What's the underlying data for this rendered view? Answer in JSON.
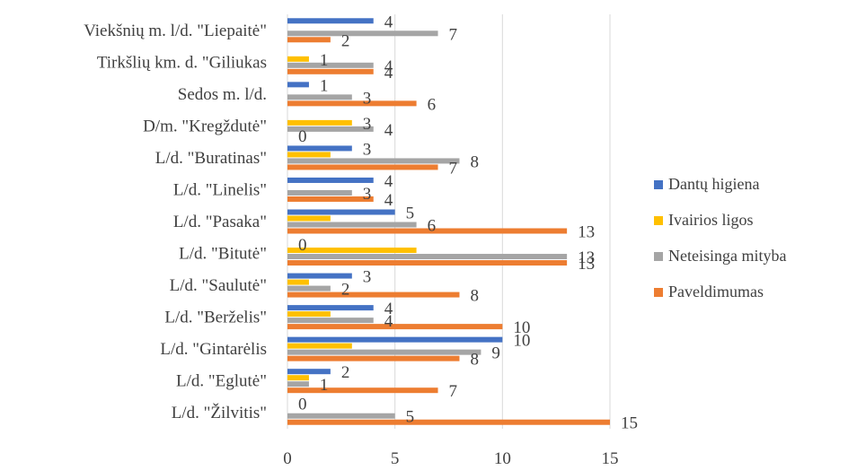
{
  "chart_data": {
    "type": "bar",
    "orientation": "horizontal",
    "categories": [
      "Viekšnių m. l/d. \"Liepaitė\"",
      "Tirkšlių km. d. \"Giliukas",
      "Sedos m. l/d.",
      "D/m. \"Kregždutė\"",
      "L/d. \"Buratinas\"",
      "L/d. \"Linelis\"",
      "L/d. \"Pasaka\"",
      "L/d. \"Bitutė\"",
      "L/d. \"Saulutė\"",
      "L/d. \"Berželis\"",
      "L/d. \"Gintarėlis",
      "L/d. \"Eglutė\"",
      "L/d. \"Žilvitis\""
    ],
    "series": [
      {
        "name": "Dantų higiena",
        "color": "#4472C4",
        "values": [
          4,
          0,
          1,
          0,
          3,
          4,
          5,
          0,
          3,
          4,
          10,
          2,
          0
        ]
      },
      {
        "name": "Ivairios ligos",
        "color": "#FFC000",
        "values": [
          0,
          1,
          0,
          3,
          2,
          0,
          2,
          6,
          1,
          2,
          3,
          1,
          0
        ]
      },
      {
        "name": "Neteisinga mityba",
        "color": "#A5A5A5",
        "values": [
          7,
          4,
          3,
          4,
          8,
          3,
          6,
          13,
          2,
          4,
          9,
          1,
          5
        ]
      },
      {
        "name": "Paveldimumas",
        "color": "#ED7D31",
        "values": [
          2,
          4,
          6,
          0,
          7,
          4,
          13,
          13,
          8,
          10,
          8,
          7,
          15
        ]
      }
    ],
    "data_labels": [
      [
        {
          "series": 0,
          "text": "4"
        },
        {
          "series": 2,
          "text": "7"
        },
        {
          "series": 3,
          "text": "2"
        }
      ],
      [
        {
          "series": 1,
          "text": "1"
        },
        {
          "series": 2,
          "text": "4"
        },
        {
          "series": 3,
          "text": "4"
        }
      ],
      [
        {
          "series": 0,
          "text": "1"
        },
        {
          "series": 2,
          "text": "3"
        },
        {
          "series": 3,
          "text": "6"
        }
      ],
      [
        {
          "series": 1,
          "text": "3"
        },
        {
          "series": 2,
          "text": "4"
        },
        {
          "series": 3,
          "text": "0"
        }
      ],
      [
        {
          "series": 0,
          "text": "3"
        },
        {
          "series": 2,
          "text": "8"
        },
        {
          "series": 3,
          "text": "7"
        }
      ],
      [
        {
          "series": 0,
          "text": "4"
        },
        {
          "series": 2,
          "text": "3"
        },
        {
          "series": 3,
          "text": "4"
        }
      ],
      [
        {
          "series": 0,
          "text": "5"
        },
        {
          "series": 2,
          "text": "6"
        },
        {
          "series": 3,
          "text": "13"
        }
      ],
      [
        {
          "series": 0,
          "text": "0"
        },
        {
          "series": 2,
          "text": "13"
        },
        {
          "series": 3,
          "text": "13"
        }
      ],
      [
        {
          "series": 0,
          "text": "3"
        },
        {
          "series": 2,
          "text": "2"
        },
        {
          "series": 3,
          "text": "8"
        }
      ],
      [
        {
          "series": 0,
          "text": "4"
        },
        {
          "series": 2,
          "text": "4"
        },
        {
          "series": 3,
          "text": "10"
        }
      ],
      [
        {
          "series": 0,
          "text": "10"
        },
        {
          "series": 2,
          "text": "9"
        },
        {
          "series": 3,
          "text": "8"
        }
      ],
      [
        {
          "series": 0,
          "text": "2"
        },
        {
          "series": 2,
          "text": "1"
        },
        {
          "series": 3,
          "text": "7"
        }
      ],
      [
        {
          "series": 0,
          "text": "0"
        },
        {
          "series": 2,
          "text": "5"
        },
        {
          "series": 3,
          "text": "15"
        }
      ]
    ],
    "xlim": [
      0,
      15
    ],
    "x_ticks": [
      0,
      5,
      10,
      15
    ],
    "title": "",
    "xlabel": "",
    "ylabel": "",
    "grid": "vertical",
    "legend_position": "right"
  }
}
